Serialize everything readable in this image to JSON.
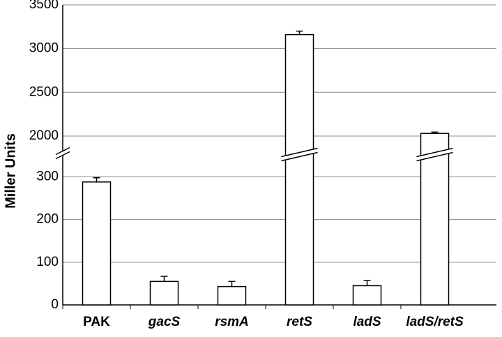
{
  "chart_data": {
    "type": "bar",
    "y_label": "Miller Units",
    "categories": [
      "PAK",
      "gacS",
      "rsmA",
      "retS",
      "ladS",
      "ladS/retS"
    ],
    "values": [
      288,
      55,
      43,
      3160,
      45,
      2030
    ],
    "errors": [
      10,
      12,
      12,
      40,
      12,
      15
    ],
    "color": "#ffffff",
    "ylim": [
      0,
      3500
    ],
    "ybreak": [
      340,
      1880
    ],
    "yticks": [
      0,
      100,
      200,
      300,
      2000,
      2500,
      3000,
      3500
    ],
    "grid": true
  }
}
